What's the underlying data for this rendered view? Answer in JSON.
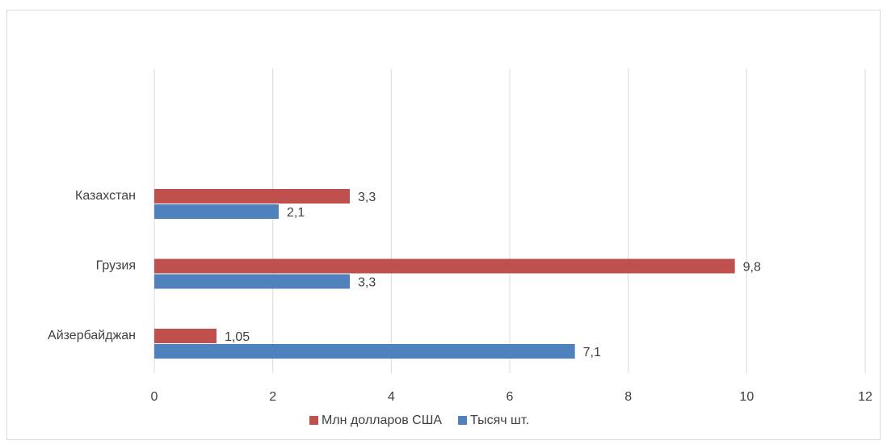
{
  "chart_data": {
    "type": "barh",
    "categories": [
      "Айзербайджан",
      "Грузия",
      "Казахстан"
    ],
    "series": [
      {
        "name": "Млн долларов США",
        "color": "#c0504d",
        "values": [
          1.05,
          9.8,
          3.3
        ],
        "value_labels": [
          "1,05",
          "9,8",
          "3,3"
        ]
      },
      {
        "name": "Тысяч шт.",
        "color": "#4f81bd",
        "values": [
          7.1,
          3.3,
          2.1
        ],
        "value_labels": [
          "7,1",
          "3,3",
          "2,1"
        ]
      }
    ],
    "xlim": [
      0,
      12
    ],
    "xticks": [
      0,
      2,
      4,
      6,
      8,
      10,
      12
    ],
    "grid": true,
    "legend": "bottom"
  }
}
